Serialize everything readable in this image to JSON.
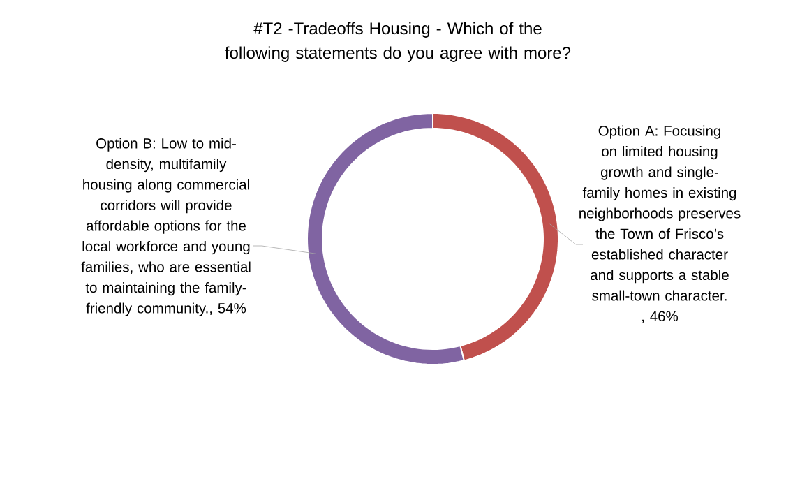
{
  "chart_data": {
    "type": "donut",
    "title": "#T2 -Tradeoffs Housing -  Which of the following statements do you agree with more?",
    "categories": [
      "Option A: Focusing on limited housing growth and single-family homes in existing neighborhoods preserves the Town of Frisco’s established character and supports a stable small-town character.",
      "Option B: Low to mid-density, multifamily housing along commercial corridors will provide affordable options for the local workforce and young families, who are essential to maintaining the family-friendly community."
    ],
    "values": [
      46,
      54
    ],
    "colors": [
      "#c0504d",
      "#8064a2"
    ],
    "value_labels": [
      ", 46%",
      ", 54%"
    ]
  }
}
